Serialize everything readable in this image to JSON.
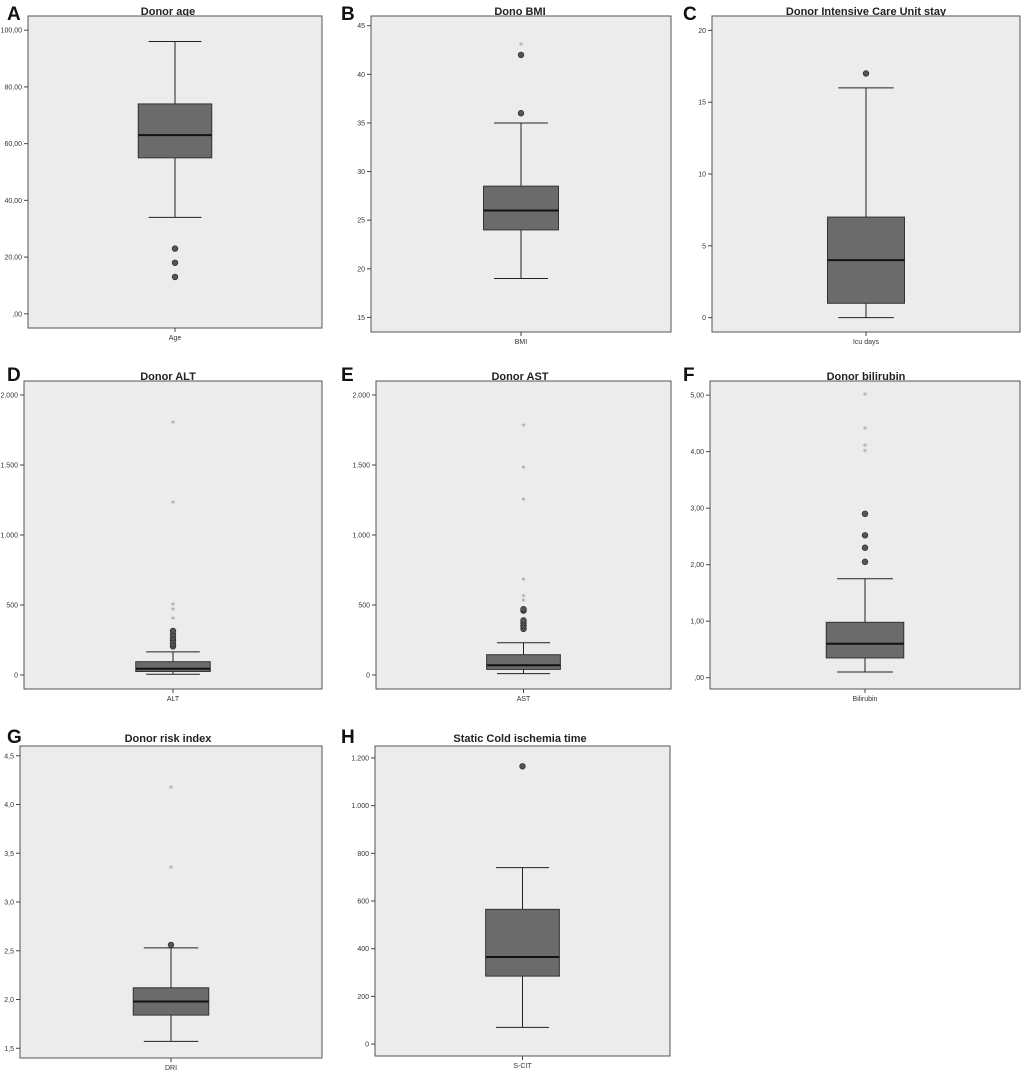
{
  "chart_data": [
    {
      "letter": "A",
      "type": "boxplot",
      "title": "Donor age",
      "category": "Age",
      "yticks": [
        0,
        20,
        40,
        60,
        80,
        100
      ],
      "ytick_labels": [
        ",00",
        "20,00",
        "40,00",
        "60,00",
        "80,00",
        "100,00"
      ],
      "ylim": [
        -5,
        105
      ],
      "box": {
        "whisker_low": 34,
        "q1": 55,
        "median": 63,
        "q3": 74,
        "whisker_high": 96
      },
      "outliers": [
        23,
        18,
        13
      ],
      "extremes": []
    },
    {
      "letter": "B",
      "type": "boxplot",
      "title": "Dono BMI",
      "category": "BMI",
      "yticks": [
        15,
        20,
        25,
        30,
        35,
        40,
        45
      ],
      "ytick_labels": [
        "15",
        "20",
        "25",
        "30",
        "35",
        "40",
        "45"
      ],
      "ylim": [
        13.5,
        46
      ],
      "box": {
        "whisker_low": 19,
        "q1": 24,
        "median": 26,
        "q3": 28.5,
        "whisker_high": 35
      },
      "outliers": [
        36,
        42
      ],
      "extremes": [
        43
      ]
    },
    {
      "letter": "C",
      "type": "boxplot",
      "title": "Donor Intensive Care Unit stay",
      "category": "Icu days",
      "yticks": [
        0,
        5,
        10,
        15,
        20
      ],
      "ytick_labels": [
        "0",
        "5",
        "10",
        "15",
        "20"
      ],
      "ylim": [
        -1,
        21
      ],
      "box": {
        "whisker_low": 0,
        "q1": 1,
        "median": 4,
        "q3": 7,
        "whisker_high": 16
      },
      "outliers": [
        17
      ],
      "extremes": []
    },
    {
      "letter": "D",
      "type": "boxplot",
      "title": "Donor ALT",
      "category": "ALT",
      "yticks": [
        0,
        500,
        1000,
        1500,
        2000
      ],
      "ytick_labels": [
        "0",
        "500",
        "1.000",
        "1.500",
        "2.000"
      ],
      "ylim": [
        -100,
        2100
      ],
      "box": {
        "whisker_low": 5,
        "q1": 25,
        "median": 45,
        "q3": 95,
        "whisker_high": 165
      },
      "outliers": [
        205,
        220,
        245,
        265,
        290,
        315
      ],
      "extremes": [
        400,
        465,
        500,
        1230,
        1800
      ]
    },
    {
      "letter": "E",
      "type": "boxplot",
      "title": "Donor AST",
      "category": "AST",
      "yticks": [
        0,
        500,
        1000,
        1500,
        2000
      ],
      "ytick_labels": [
        "0",
        "500",
        "1.000",
        "1.500",
        "2.000"
      ],
      "ylim": [
        -100,
        2100
      ],
      "box": {
        "whisker_low": 10,
        "q1": 40,
        "median": 70,
        "q3": 145,
        "whisker_high": 230
      },
      "outliers": [
        330,
        350,
        370,
        390,
        460,
        470
      ],
      "extremes": [
        530,
        560,
        680,
        1250,
        1480,
        1780
      ]
    },
    {
      "letter": "F",
      "type": "boxplot",
      "title": "Donor bilirubin",
      "category": "Bilirubin",
      "yticks": [
        0,
        1,
        2,
        3,
        4,
        5
      ],
      "ytick_labels": [
        ",00",
        "1,00",
        "2,00",
        "3,00",
        "4,00",
        "5,00"
      ],
      "ylim": [
        -0.2,
        5.25
      ],
      "box": {
        "whisker_low": 0.1,
        "q1": 0.35,
        "median": 0.6,
        "q3": 0.98,
        "whisker_high": 1.75
      },
      "outliers": [
        2.05,
        2.3,
        2.52,
        2.9
      ],
      "extremes": [
        4.0,
        4.1,
        4.4,
        5.0
      ]
    },
    {
      "letter": "G",
      "type": "boxplot",
      "title": "Donor risk index",
      "category": "DRI",
      "yticks": [
        1.5,
        2.0,
        2.5,
        3.0,
        3.5,
        4.0,
        4.5
      ],
      "ytick_labels": [
        "1,5",
        "2,0",
        "2,5",
        "3,0",
        "3,5",
        "4,0",
        "4,5"
      ],
      "ylim": [
        1.4,
        4.6
      ],
      "box": {
        "whisker_low": 1.57,
        "q1": 1.84,
        "median": 1.98,
        "q3": 2.12,
        "whisker_high": 2.53
      },
      "outliers": [
        2.56
      ],
      "extremes": [
        3.35,
        4.17
      ]
    },
    {
      "letter": "H",
      "type": "boxplot",
      "title": "Static Cold ischemia time",
      "category": "S-CIT",
      "yticks": [
        0,
        200,
        400,
        600,
        800,
        1000,
        1200
      ],
      "ytick_labels": [
        "0",
        "200",
        "400",
        "600",
        "800",
        "1.000",
        "1.200"
      ],
      "ylim": [
        -50,
        1250
      ],
      "box": {
        "whisker_low": 70,
        "q1": 285,
        "median": 365,
        "q3": 565,
        "whisker_high": 740
      },
      "outliers": [
        1165
      ],
      "extremes": []
    }
  ]
}
